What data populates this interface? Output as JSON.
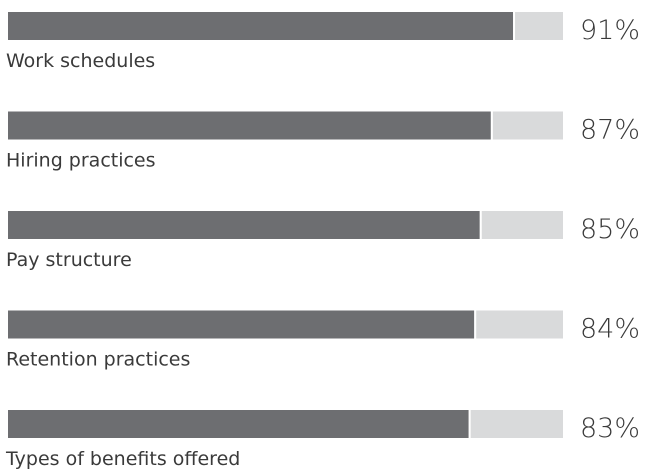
{
  "chart_data": {
    "type": "bar",
    "orientation": "horizontal",
    "categories": [
      "Work schedules",
      "Hiring practices",
      "Pay structure",
      "Retention practices",
      "Types of benefits offered"
    ],
    "values": [
      91,
      87,
      85,
      84,
      83
    ],
    "value_labels": [
      "91%",
      "87%",
      "85%",
      "84%",
      "83%"
    ],
    "color": "#6d6e71",
    "track_color": "#d9dadb",
    "xlim": [
      0,
      100
    ]
  }
}
